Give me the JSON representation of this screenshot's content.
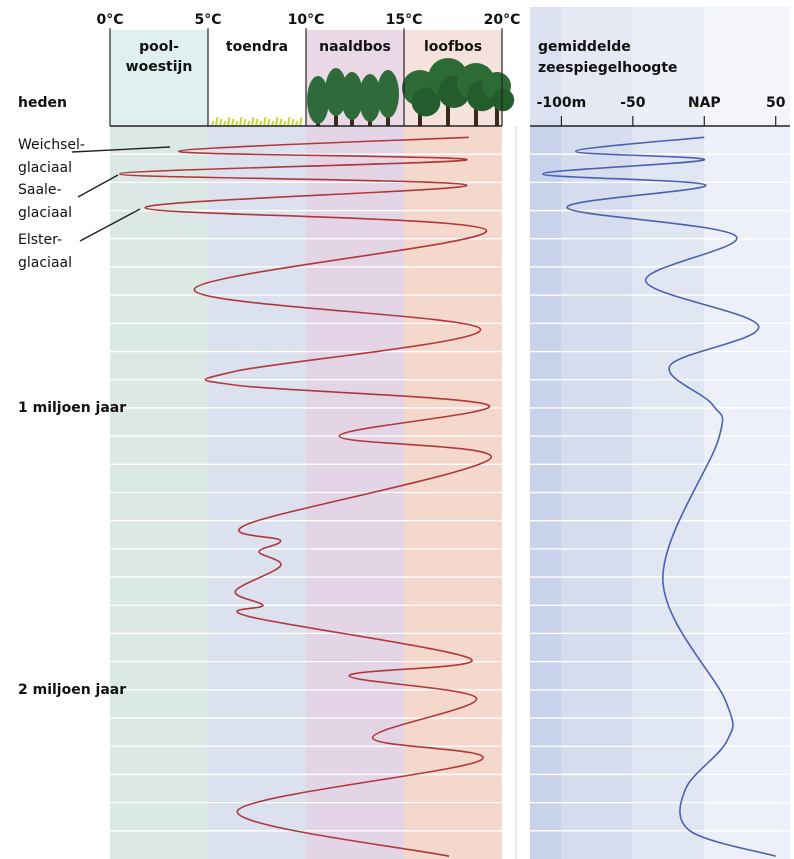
{
  "chart_data": [
    {
      "type": "line",
      "orientation": "vertical",
      "x": [
        0.04,
        0.09,
        0.12,
        0.17,
        0.21,
        0.29,
        0.37,
        0.58,
        0.72,
        0.87,
        0.92,
        0.99,
        1.1,
        1.18,
        1.41,
        1.47,
        1.51,
        1.56,
        1.65,
        1.7,
        1.74,
        1.89,
        1.95,
        2.03,
        2.17,
        2.25,
        2.43,
        2.59
      ],
      "values": [
        18.3,
        3.5,
        18.2,
        0.5,
        18.2,
        1.8,
        19.2,
        4.3,
        18.9,
        6.4,
        6.5,
        19.3,
        11.7,
        19.4,
        7.1,
        8.7,
        7.6,
        8.7,
        6.4,
        7.8,
        7.1,
        18.4,
        12.2,
        18.7,
        13.4,
        18.9,
        6.5,
        17.3
      ],
      "color": "#b0383a",
      "xlim": [
        0,
        2.6
      ],
      "xticks": [
        {
          "value": 0,
          "label": "heden"
        },
        {
          "value": 1,
          "label": "1 miljoen jaar"
        },
        {
          "value": 2,
          "label": "2 miljoen jaar"
        }
      ],
      "grid": [
        0.1,
        0.2,
        0.3,
        0.4,
        0.5,
        0.6,
        0.7,
        0.8,
        0.9,
        1.0,
        1.1,
        1.2,
        1.3,
        1.4,
        1.5,
        1.6,
        1.7,
        1.8,
        1.9,
        2.0,
        2.1,
        2.2,
        2.3,
        2.4,
        2.5
      ],
      "ylim": [
        0,
        20
      ],
      "yticks": [
        {
          "value": 0,
          "label": "0°C"
        },
        {
          "value": 5,
          "label": "5°C"
        },
        {
          "value": 10,
          "label": "10°C"
        },
        {
          "value": 15,
          "label": "15°C"
        },
        {
          "value": 20,
          "label": "20°C"
        }
      ],
      "zones": [
        {
          "label": [
            "pool-",
            "woestijn"
          ],
          "from": 0,
          "to": 5,
          "color": "#dce8e5",
          "header_color": "#e0f0ef"
        },
        {
          "label": [
            "toendra"
          ],
          "from": 5,
          "to": 10,
          "color": "#dbe1ef",
          "header_color": "#ffffff"
        },
        {
          "label": [
            "naaldbos"
          ],
          "from": 10,
          "to": 15,
          "color": "#e3d5e6",
          "header_color": "#ead8e6"
        },
        {
          "label": [
            "loofbos"
          ],
          "from": 15,
          "to": 20,
          "color": "#f5d8cc",
          "header_color": "#f6e2dc"
        }
      ],
      "annotations": [
        [
          "Weichsel-",
          "glaciaal"
        ],
        [
          "Saale-",
          "glaciaal"
        ],
        [
          "Elster-",
          "glaciaal"
        ]
      ]
    },
    {
      "type": "line",
      "orientation": "vertical",
      "title": [
        "gemiddelde",
        "zeespiegelhoogte"
      ],
      "x": [
        0.04,
        0.09,
        0.12,
        0.17,
        0.21,
        0.29,
        0.39,
        0.55,
        0.71,
        0.85,
        0.99,
        1.11,
        1.61,
        2.04,
        2.18,
        2.35,
        2.5,
        2.59
      ],
      "values": [
        0,
        -90,
        0,
        -113,
        1,
        -96,
        22,
        -41,
        38,
        -24,
        6,
        10,
        -29,
        15,
        16,
        -13,
        -10,
        50
      ],
      "color": "#4a62b0",
      "xlim": [
        0,
        2.6
      ],
      "grid": [
        0.1,
        0.2,
        0.3,
        0.4,
        0.5,
        0.6,
        0.7,
        0.8,
        0.9,
        1.0,
        1.1,
        1.2,
        1.3,
        1.4,
        1.5,
        1.6,
        1.7,
        1.8,
        1.9,
        2.0,
        2.1,
        2.2,
        2.3,
        2.4,
        2.5
      ],
      "ylim": [
        -122,
        60
      ],
      "yticks": [
        {
          "value": -100,
          "label": "-100m"
        },
        -50,
        {
          "value": 0,
          "label": "NAP"
        },
        50
      ],
      "bands": [
        {
          "from": -122,
          "to": -100,
          "color": "#c8d2ea"
        },
        {
          "from": -100,
          "to": -50,
          "color": "#d6ddef"
        },
        {
          "from": -50,
          "to": 0,
          "color": "#e1e6f3"
        },
        {
          "from": 0,
          "to": 60,
          "color": "#edf0f8"
        }
      ]
    }
  ]
}
